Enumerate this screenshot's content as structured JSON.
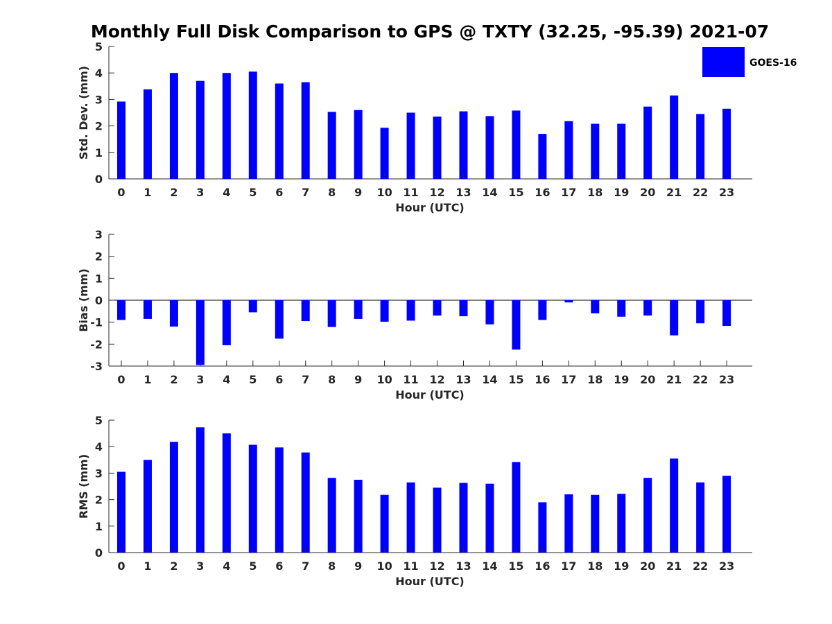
{
  "title": "Monthly Full Disk Comparison to GPS @ TXTY (32.25, -95.39) 2021-07",
  "legend": {
    "label": "GOES-16",
    "color": "#0000ff"
  },
  "chart_data": [
    {
      "type": "bar",
      "name": "std-dev",
      "title": "Monthly Full Disk Comparison to GPS @ TXTY (32.25, -95.39) 2021-07",
      "xlabel": "Hour (UTC)",
      "ylabel": "Std. Dev. (mm)",
      "ylim": [
        0,
        5
      ],
      "yticks": [
        "0",
        "1",
        "2",
        "3",
        "4",
        "5"
      ],
      "categories": [
        "0",
        "1",
        "2",
        "3",
        "4",
        "5",
        "6",
        "7",
        "8",
        "9",
        "10",
        "11",
        "12",
        "13",
        "14",
        "15",
        "16",
        "17",
        "18",
        "19",
        "20",
        "21",
        "22",
        "23"
      ],
      "series": [
        {
          "name": "GOES-16",
          "color": "#0000ff",
          "values": [
            2.92,
            3.38,
            4.0,
            3.7,
            4.0,
            4.05,
            3.6,
            3.65,
            2.53,
            2.6,
            1.93,
            2.5,
            2.35,
            2.55,
            2.37,
            2.58,
            1.7,
            2.18,
            2.08,
            2.08,
            2.73,
            3.15,
            2.45,
            2.65
          ]
        }
      ]
    },
    {
      "type": "bar",
      "name": "bias",
      "xlabel": "Hour (UTC)",
      "ylabel": "Bias (mm)",
      "ylim": [
        -3,
        3
      ],
      "yticks": [
        "-3",
        "-2",
        "-1",
        "0",
        "1",
        "2",
        "3"
      ],
      "categories": [
        "0",
        "1",
        "2",
        "3",
        "4",
        "5",
        "6",
        "7",
        "8",
        "9",
        "10",
        "11",
        "12",
        "13",
        "14",
        "15",
        "16",
        "17",
        "18",
        "19",
        "20",
        "21",
        "22",
        "23"
      ],
      "series": [
        {
          "name": "GOES-16",
          "color": "#0000ff",
          "values": [
            -0.9,
            -0.85,
            -1.2,
            -2.95,
            -2.05,
            -0.55,
            -1.75,
            -0.95,
            -1.22,
            -0.85,
            -0.98,
            -0.93,
            -0.7,
            -0.73,
            -1.1,
            -2.25,
            -0.9,
            -0.1,
            -0.6,
            -0.75,
            -0.7,
            -1.6,
            -1.05,
            -1.17
          ]
        }
      ]
    },
    {
      "type": "bar",
      "name": "rms",
      "xlabel": "Hour (UTC)",
      "ylabel": "RMS (mm)",
      "ylim": [
        0,
        5
      ],
      "yticks": [
        "0",
        "1",
        "2",
        "3",
        "4",
        "5"
      ],
      "categories": [
        "0",
        "1",
        "2",
        "3",
        "4",
        "5",
        "6",
        "7",
        "8",
        "9",
        "10",
        "11",
        "12",
        "13",
        "14",
        "15",
        "16",
        "17",
        "18",
        "19",
        "20",
        "21",
        "22",
        "23"
      ],
      "series": [
        {
          "name": "GOES-16",
          "color": "#0000ff",
          "values": [
            3.05,
            3.5,
            4.18,
            4.73,
            4.5,
            4.07,
            3.97,
            3.78,
            2.82,
            2.75,
            2.18,
            2.65,
            2.45,
            2.63,
            2.6,
            3.42,
            1.9,
            2.2,
            2.18,
            2.22,
            2.82,
            3.55,
            2.65,
            2.9
          ]
        }
      ]
    }
  ]
}
